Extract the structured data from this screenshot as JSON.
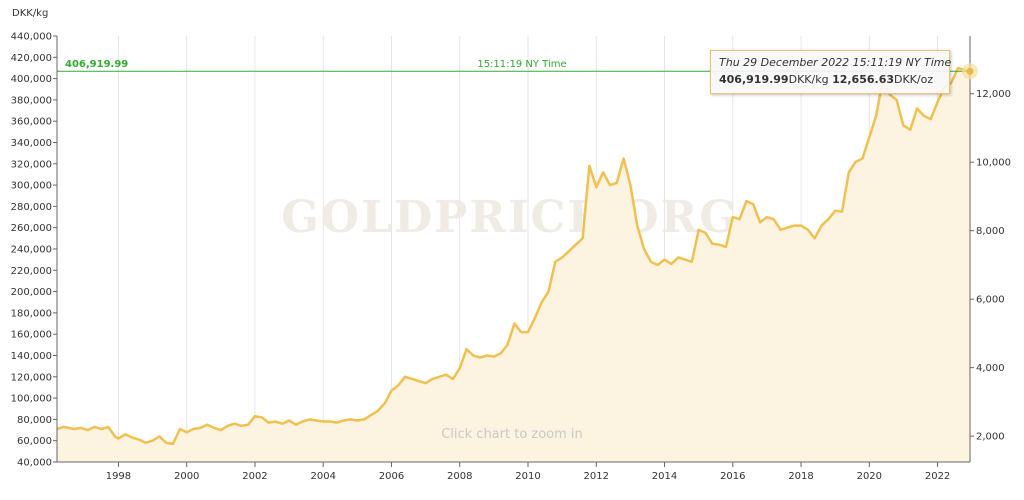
{
  "chart_data": {
    "type": "area",
    "yunit_left": "DKK/kg",
    "watermark": "GOLDPRICE.ORG",
    "zoom_hint": "Click chart to zoom in",
    "x_ticks": [
      "1998",
      "2000",
      "2002",
      "2004",
      "2006",
      "2008",
      "2010",
      "2012",
      "2014",
      "2016",
      "2018",
      "2020",
      "2022"
    ],
    "y_left_ticks": [
      "40,000",
      "60,000",
      "80,000",
      "100,000",
      "120,000",
      "140,000",
      "160,000",
      "180,000",
      "200,000",
      "220,000",
      "240,000",
      "260,000",
      "280,000",
      "300,000",
      "320,000",
      "340,000",
      "360,000",
      "380,000",
      "400,000",
      "420,000",
      "440,000"
    ],
    "y_right_ticks": [
      "2,000",
      "4,000",
      "6,000",
      "8,000",
      "10,000",
      "12,000"
    ],
    "ylim_left": [
      40000,
      440000
    ],
    "xlim": [
      1996.2,
      2022.95
    ],
    "current_line": {
      "value": 406919.99,
      "value_label": "406,919.99",
      "time_label": "15:11:19 NY Time"
    },
    "tooltip": {
      "date": "Thu 29 December 2022 15:11:19 NY Time",
      "kg_value": "406,919.99",
      "kg_unit": "DKK/kg",
      "oz_value": "12,656.63",
      "oz_unit": "DKK/oz"
    },
    "colors": {
      "line": "#f0c050",
      "area": "#fdf3e1",
      "current_line": "#33aa33",
      "axis": "#666666",
      "grid": "#e6e6e6"
    },
    "series": [
      {
        "x": [
          1996.2,
          1996.4,
          1996.7,
          1996.9,
          1997.1,
          1997.3,
          1997.5,
          1997.7,
          1997.9,
          1998.0,
          1998.2,
          1998.4,
          1998.6,
          1998.8,
          1999.0,
          1999.2,
          1999.4,
          1999.6,
          1999.8,
          2000.0,
          2000.2,
          2000.4,
          2000.6,
          2000.8,
          2001.0,
          2001.2,
          2001.4,
          2001.6,
          2001.8,
          2002.0,
          2002.2,
          2002.4,
          2002.6,
          2002.8,
          2003.0,
          2003.2,
          2003.4,
          2003.6,
          2003.8,
          2004.0,
          2004.2,
          2004.4,
          2004.6,
          2004.8,
          2005.0,
          2005.2,
          2005.4,
          2005.6,
          2005.8,
          2006.0,
          2006.2,
          2006.4,
          2006.6,
          2006.8,
          2007.0,
          2007.2,
          2007.4,
          2007.6,
          2007.8,
          2008.0,
          2008.2,
          2008.4,
          2008.6,
          2008.8,
          2009.0,
          2009.2,
          2009.4,
          2009.6,
          2009.8,
          2010.0,
          2010.2,
          2010.4,
          2010.6,
          2010.8,
          2011.0,
          2011.2,
          2011.4,
          2011.6,
          2011.8,
          2012.0,
          2012.2,
          2012.4,
          2012.6,
          2012.8,
          2013.0,
          2013.2,
          2013.4,
          2013.6,
          2013.8,
          2014.0,
          2014.2,
          2014.4,
          2014.6,
          2014.8,
          2015.0,
          2015.2,
          2015.4,
          2015.6,
          2015.8,
          2016.0,
          2016.2,
          2016.4,
          2016.6,
          2016.8,
          2017.0,
          2017.2,
          2017.4,
          2017.6,
          2017.8,
          2018.0,
          2018.2,
          2018.4,
          2018.6,
          2018.8,
          2019.0,
          2019.2,
          2019.4,
          2019.6,
          2019.8,
          2020.0,
          2020.2,
          2020.4,
          2020.6,
          2020.8,
          2021.0,
          2021.2,
          2021.4,
          2021.6,
          2021.8,
          2022.0,
          2022.2,
          2022.4,
          2022.6,
          2022.8,
          2022.95
        ],
        "values": [
          71000,
          73000,
          71000,
          72000,
          70000,
          73000,
          71000,
          73000,
          64000,
          62000,
          66000,
          63000,
          61000,
          58000,
          60000,
          64000,
          58000,
          57000,
          71000,
          68000,
          71000,
          72000,
          75000,
          72000,
          70000,
          74000,
          76000,
          74000,
          75000,
          83000,
          82000,
          77000,
          78000,
          76000,
          79000,
          75000,
          78000,
          80000,
          79000,
          78000,
          78000,
          77000,
          79000,
          80000,
          79000,
          80000,
          84000,
          88000,
          95000,
          107000,
          112000,
          120000,
          118000,
          116000,
          114000,
          118000,
          120000,
          122000,
          118000,
          128000,
          146000,
          140000,
          138000,
          140000,
          139000,
          142000,
          150000,
          170000,
          162000,
          162000,
          175000,
          190000,
          200000,
          228000,
          232000,
          238000,
          244000,
          250000,
          318000,
          298000,
          312000,
          300000,
          302000,
          325000,
          300000,
          262000,
          240000,
          228000,
          225000,
          230000,
          226000,
          232000,
          230000,
          228000,
          258000,
          255000,
          245000,
          244000,
          242000,
          270000,
          268000,
          285000,
          282000,
          265000,
          270000,
          268000,
          258000,
          260000,
          262000,
          262000,
          258000,
          250000,
          262000,
          268000,
          276000,
          275000,
          312000,
          322000,
          325000,
          345000,
          365000,
          400000,
          385000,
          380000,
          356000,
          352000,
          372000,
          365000,
          362000,
          378000,
          392000,
          396000,
          410000,
          408000,
          406920
        ]
      }
    ]
  }
}
